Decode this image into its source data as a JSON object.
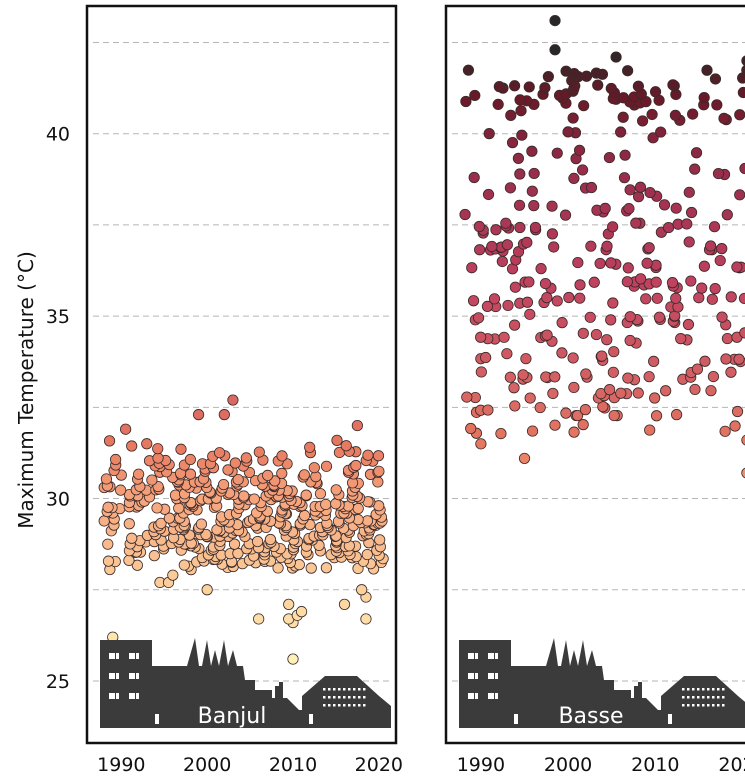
{
  "chart_data": [
    {
      "type": "scatter",
      "panel_label": "Banjul",
      "ylabel": "Maximum Temperature (°C)",
      "xticks": [
        1990,
        2000,
        2010,
        2020
      ],
      "yticks": [
        25,
        30,
        35,
        40
      ],
      "xlim": [
        1986,
        2022
      ],
      "ylim": [
        23.3,
        43.5
      ],
      "grid": "horizontal dashed",
      "colormap": [
        "#fff3b8",
        "#f8c08e",
        "#ef8a6c",
        "#c0415f",
        "#6b1a2e",
        "#2a2a2a"
      ],
      "notable_points": [
        {
          "x": 1989,
          "y": 26.2
        },
        {
          "x": 1994.5,
          "y": 27.7
        },
        {
          "x": 1995.5,
          "y": 27.7
        },
        {
          "x": 1996,
          "y": 27.9
        },
        {
          "x": 2000,
          "y": 27.5
        },
        {
          "x": 2006,
          "y": 26.7
        },
        {
          "x": 2009.5,
          "y": 26.7
        },
        {
          "x": 2009.5,
          "y": 27.1
        },
        {
          "x": 2010,
          "y": 26.6
        },
        {
          "x": 2010.5,
          "y": 26.8
        },
        {
          "x": 2011,
          "y": 26.9
        },
        {
          "x": 2010,
          "y": 25.6
        },
        {
          "x": 2016,
          "y": 27.1
        },
        {
          "x": 2018,
          "y": 27.5
        },
        {
          "x": 2018.5,
          "y": 27.3
        },
        {
          "x": 2018.5,
          "y": 26.7
        },
        {
          "x": 2003,
          "y": 32.7
        },
        {
          "x": 1999,
          "y": 32.3
        },
        {
          "x": 2002,
          "y": 32.3
        },
        {
          "x": 2017.5,
          "y": 32.0
        },
        {
          "x": 1990.5,
          "y": 31.9
        }
      ],
      "density_rows": [
        {
          "y": 28.2,
          "n": 36
        },
        {
          "y": 28.5,
          "n": 44
        },
        {
          "y": 28.8,
          "n": 52
        },
        {
          "y": 29.1,
          "n": 56
        },
        {
          "y": 29.4,
          "n": 56
        },
        {
          "y": 29.7,
          "n": 54
        },
        {
          "y": 30.0,
          "n": 50
        },
        {
          "y": 30.3,
          "n": 44
        },
        {
          "y": 30.6,
          "n": 36
        },
        {
          "y": 30.9,
          "n": 26
        },
        {
          "y": 31.2,
          "n": 16
        },
        {
          "y": 31.5,
          "n": 8
        }
      ]
    },
    {
      "type": "scatter",
      "panel_label": "Basse",
      "xticks": [
        1990,
        2000,
        2010,
        2020
      ],
      "xlim": [
        1986,
        2022
      ],
      "ylim": [
        23.3,
        43.5
      ],
      "grid": "horizontal dashed",
      "notable_points": [
        {
          "x": 1998.5,
          "y": 43.1
        },
        {
          "x": 1998.5,
          "y": 42.3
        },
        {
          "x": 2005.5,
          "y": 42.1
        },
        {
          "x": 2020.5,
          "y": 42.0
        },
        {
          "x": 1995,
          "y": 31.1
        },
        {
          "x": 2020.5,
          "y": 30.7
        },
        {
          "x": 1990,
          "y": 31.5
        },
        {
          "x": 2020.5,
          "y": 31.6
        }
      ],
      "density_rows": [
        {
          "y": 31.9,
          "n": 10
        },
        {
          "y": 32.4,
          "n": 16
        },
        {
          "y": 32.9,
          "n": 18
        },
        {
          "y": 33.4,
          "n": 20
        },
        {
          "y": 33.9,
          "n": 16
        },
        {
          "y": 34.4,
          "n": 18
        },
        {
          "y": 34.9,
          "n": 20
        },
        {
          "y": 35.4,
          "n": 22
        },
        {
          "y": 35.9,
          "n": 20
        },
        {
          "y": 36.4,
          "n": 18
        },
        {
          "y": 36.9,
          "n": 22
        },
        {
          "y": 37.4,
          "n": 20
        },
        {
          "y": 37.9,
          "n": 14
        },
        {
          "y": 38.4,
          "n": 12
        },
        {
          "y": 38.9,
          "n": 10
        },
        {
          "y": 39.4,
          "n": 8
        },
        {
          "y": 39.9,
          "n": 8
        },
        {
          "y": 40.5,
          "n": 12
        },
        {
          "y": 40.9,
          "n": 22
        },
        {
          "y": 41.2,
          "n": 20
        },
        {
          "y": 41.6,
          "n": 14
        }
      ]
    }
  ]
}
